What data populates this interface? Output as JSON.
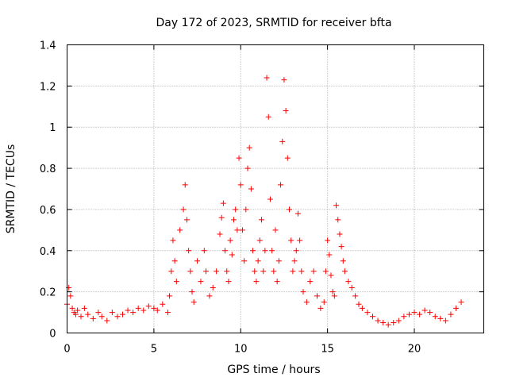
{
  "chart_data": {
    "type": "scatter",
    "title": "Day 172 of 2023, SRMTID for receiver bfta",
    "xlabel": "GPS time / hours",
    "ylabel": "SRMTID / TECUs",
    "xlim": [
      0,
      24
    ],
    "ylim": [
      0,
      1.4
    ],
    "xticks": [
      0,
      5,
      10,
      15,
      20
    ],
    "xtick_labels": [
      "0",
      "5",
      "10",
      "15",
      "20"
    ],
    "yticks": [
      0,
      0.2,
      0.4,
      0.6,
      0.8,
      1.0,
      1.2,
      1.4
    ],
    "ytick_labels": [
      "0",
      "0.2",
      "0.4",
      "0.6",
      "0.8",
      "1",
      "1.2",
      "1.4"
    ],
    "grid": true,
    "marker": "+",
    "color": "#ff0000",
    "series": [
      {
        "name": "SRMTID",
        "x": [
          0.0,
          0.1,
          0.2,
          0.3,
          0.4,
          0.5,
          0.6,
          0.8,
          1.0,
          1.2,
          1.5,
          1.8,
          2.0,
          2.3,
          2.6,
          2.9,
          3.2,
          3.5,
          3.8,
          4.1,
          4.4,
          4.7,
          5.0,
          5.2,
          5.5,
          5.8,
          5.9,
          6.0,
          6.1,
          6.2,
          6.3,
          6.5,
          6.7,
          6.8,
          6.9,
          7.0,
          7.1,
          7.2,
          7.3,
          7.5,
          7.7,
          7.9,
          8.0,
          8.2,
          8.4,
          8.6,
          8.8,
          8.9,
          9.0,
          9.1,
          9.2,
          9.3,
          9.4,
          9.5,
          9.6,
          9.7,
          9.8,
          9.9,
          10.0,
          10.1,
          10.2,
          10.3,
          10.4,
          10.5,
          10.6,
          10.7,
          10.8,
          10.9,
          11.0,
          11.1,
          11.2,
          11.3,
          11.4,
          11.5,
          11.6,
          11.7,
          11.8,
          11.9,
          12.0,
          12.1,
          12.2,
          12.3,
          12.4,
          12.5,
          12.6,
          12.7,
          12.8,
          12.9,
          13.0,
          13.1,
          13.2,
          13.3,
          13.4,
          13.5,
          13.6,
          13.8,
          14.0,
          14.2,
          14.4,
          14.6,
          14.8,
          14.9,
          15.0,
          15.1,
          15.2,
          15.3,
          15.4,
          15.5,
          15.6,
          15.7,
          15.8,
          15.9,
          16.0,
          16.2,
          16.4,
          16.6,
          16.8,
          17.0,
          17.3,
          17.6,
          17.9,
          18.2,
          18.5,
          18.8,
          19.1,
          19.4,
          19.7,
          20.0,
          20.3,
          20.6,
          20.9,
          21.2,
          21.5,
          21.8,
          22.1,
          22.4,
          22.7
        ],
        "y": [
          0.14,
          0.22,
          0.18,
          0.12,
          0.1,
          0.09,
          0.11,
          0.08,
          0.12,
          0.09,
          0.07,
          0.1,
          0.08,
          0.06,
          0.1,
          0.08,
          0.09,
          0.11,
          0.1,
          0.12,
          0.11,
          0.13,
          0.12,
          0.11,
          0.14,
          0.1,
          0.18,
          0.3,
          0.45,
          0.35,
          0.25,
          0.5,
          0.6,
          0.72,
          0.55,
          0.4,
          0.3,
          0.2,
          0.15,
          0.35,
          0.25,
          0.4,
          0.3,
          0.18,
          0.22,
          0.3,
          0.48,
          0.56,
          0.63,
          0.4,
          0.3,
          0.25,
          0.45,
          0.38,
          0.55,
          0.6,
          0.5,
          0.85,
          0.72,
          0.5,
          0.35,
          0.6,
          0.8,
          0.9,
          0.7,
          0.4,
          0.3,
          0.25,
          0.35,
          0.45,
          0.55,
          0.3,
          0.4,
          1.24,
          1.05,
          0.65,
          0.4,
          0.3,
          0.5,
          0.25,
          0.35,
          0.72,
          0.93,
          1.23,
          1.08,
          0.85,
          0.6,
          0.45,
          0.3,
          0.35,
          0.4,
          0.58,
          0.45,
          0.3,
          0.2,
          0.15,
          0.25,
          0.3,
          0.18,
          0.12,
          0.15,
          0.3,
          0.45,
          0.38,
          0.28,
          0.2,
          0.18,
          0.62,
          0.55,
          0.48,
          0.42,
          0.35,
          0.3,
          0.25,
          0.22,
          0.18,
          0.14,
          0.12,
          0.1,
          0.08,
          0.06,
          0.05,
          0.04,
          0.05,
          0.06,
          0.08,
          0.09,
          0.1,
          0.09,
          0.11,
          0.1,
          0.08,
          0.07,
          0.06,
          0.09,
          0.12,
          0.15
        ]
      }
    ]
  }
}
